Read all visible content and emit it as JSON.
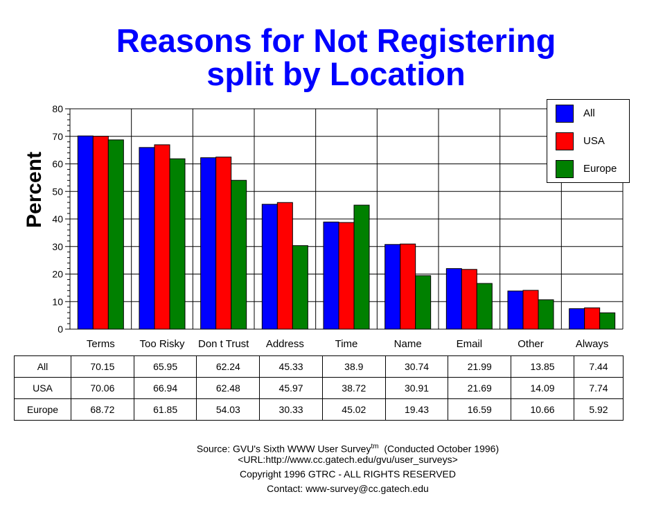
{
  "chart_data": {
    "type": "bar",
    "title": "Reasons for Not Registering",
    "subtitle": "split by Location",
    "xlabel": "",
    "ylabel": "Percent",
    "ylim": [
      0,
      80
    ],
    "yticks": [
      0,
      10,
      20,
      30,
      40,
      50,
      60,
      70,
      80
    ],
    "grid": true,
    "legend_position": "top-right",
    "categories": [
      "Terms",
      "Too Risky",
      "Don t Trust",
      "Address",
      "Time",
      "Name",
      "Email",
      "Other",
      "Always"
    ],
    "series": [
      {
        "name": "All",
        "color": "#0000ff",
        "values": [
          70.15,
          65.95,
          62.24,
          45.33,
          38.9,
          30.74,
          21.99,
          13.85,
          7.44
        ],
        "labels": [
          "70.15",
          "65.95",
          "62.24",
          "45.33",
          "38.9",
          "30.74",
          "21.99",
          "13.85",
          "7.44"
        ]
      },
      {
        "name": "USA",
        "color": "#ff0000",
        "values": [
          70.06,
          66.94,
          62.48,
          45.97,
          38.72,
          30.91,
          21.69,
          14.09,
          7.74
        ],
        "labels": [
          "70.06",
          "66.94",
          "62.48",
          "45.97",
          "38.72",
          "30.91",
          "21.69",
          "14.09",
          "7.74"
        ]
      },
      {
        "name": "Europe",
        "color": "#008000",
        "values": [
          68.72,
          61.85,
          54.03,
          30.33,
          45.02,
          19.43,
          16.59,
          10.66,
          5.92
        ],
        "labels": [
          "68.72",
          "61.85",
          "54.03",
          "30.33",
          "45.02",
          "19.43",
          "16.59",
          "10.66",
          "5.92"
        ]
      }
    ]
  },
  "footer": {
    "source_prefix": "Source: GVU's Sixth WWW User Survey",
    "source_tm": "tm",
    "source_suffix": "  (Conducted October 1996)",
    "url": "<URL:http://www.cc.gatech.edu/gvu/user_surveys>",
    "copyright": "Copyright 1996 GTRC -  ALL RIGHTS RESERVED",
    "contact": "Contact: www-survey@cc.gatech.edu"
  }
}
